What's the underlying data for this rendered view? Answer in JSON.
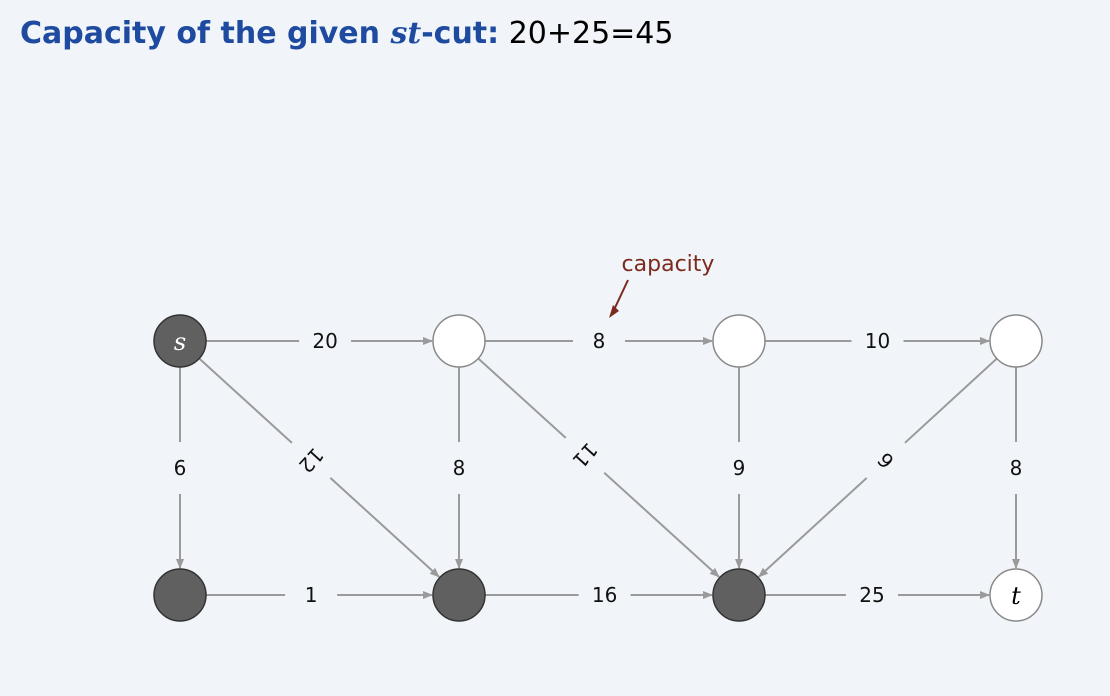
{
  "title": {
    "prefix": "Capacity of the given ",
    "italic": "st",
    "suffix": "-cut:",
    "value": "20+25=45"
  },
  "annotation": {
    "text": "capacity"
  },
  "colors": {
    "title": "#1e4aa0",
    "node_dark": "#606060",
    "node_light": "#ffffff",
    "edge": "#9a9a9a",
    "annotation": "#7b2a1e",
    "background": "#f1f5f9"
  },
  "graph": {
    "nodes": [
      {
        "id": "s",
        "label": "s",
        "shaded": true
      },
      {
        "id": "a",
        "label": "",
        "shaded": false
      },
      {
        "id": "b",
        "label": "",
        "shaded": false
      },
      {
        "id": "c",
        "label": "",
        "shaded": false
      },
      {
        "id": "d",
        "label": "",
        "shaded": true
      },
      {
        "id": "e",
        "label": "",
        "shaded": true
      },
      {
        "id": "f",
        "label": "",
        "shaded": true
      },
      {
        "id": "t",
        "label": "t",
        "shaded": false
      }
    ],
    "edges": [
      {
        "from": "s",
        "to": "a",
        "capacity": "20"
      },
      {
        "from": "a",
        "to": "b",
        "capacity": "8"
      },
      {
        "from": "b",
        "to": "c",
        "capacity": "10"
      },
      {
        "from": "s",
        "to": "d",
        "capacity": "6"
      },
      {
        "from": "s",
        "to": "e",
        "capacity": "12"
      },
      {
        "from": "a",
        "to": "e",
        "capacity": "8"
      },
      {
        "from": "a",
        "to": "f",
        "capacity": "11"
      },
      {
        "from": "b",
        "to": "f",
        "capacity": "9"
      },
      {
        "from": "c",
        "to": "f",
        "capacity": "6"
      },
      {
        "from": "c",
        "to": "t",
        "capacity": "8"
      },
      {
        "from": "d",
        "to": "e",
        "capacity": "1"
      },
      {
        "from": "e",
        "to": "f",
        "capacity": "16"
      },
      {
        "from": "f",
        "to": "t",
        "capacity": "25"
      }
    ]
  }
}
